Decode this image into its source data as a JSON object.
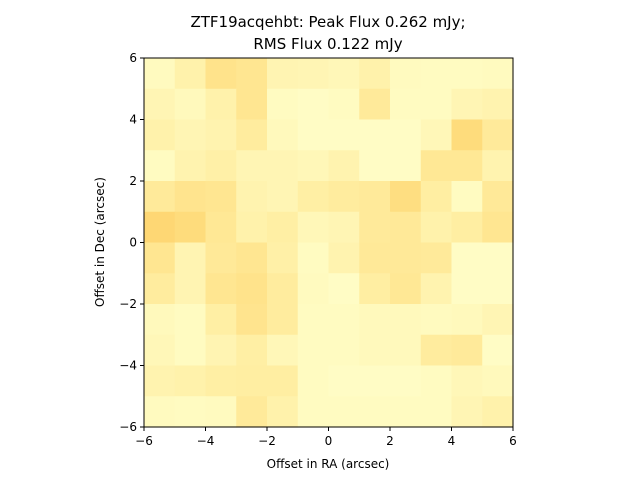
{
  "chart_data": {
    "type": "heatmap",
    "title_line1": "ZTF19acqehbt: Peak Flux 0.262 mJy;",
    "title_line2": "RMS Flux 0.122 mJy",
    "xlabel": "Offset in RA (arcsec)",
    "ylabel": "Offset in Dec (arcsec)",
    "xlim": [
      -6,
      6
    ],
    "ylim": [
      -6,
      6
    ],
    "xticks": [
      -6,
      -4,
      -2,
      0,
      2,
      4,
      6
    ],
    "yticks": [
      -6,
      -4,
      -2,
      0,
      2,
      4,
      6
    ],
    "colormap": [
      "#ffffcc",
      "#ffeda0",
      "#fed976",
      "#feb24c"
    ],
    "value_range": [
      0,
      1
    ],
    "rows_top_to_bottom": [
      [
        0.1,
        0.25,
        0.5,
        0.45,
        0.2,
        0.18,
        0.15,
        0.25,
        0.1,
        0.08,
        0.08,
        0.1
      ],
      [
        0.18,
        0.12,
        0.25,
        0.45,
        0.08,
        0.05,
        0.08,
        0.38,
        0.08,
        0.08,
        0.18,
        0.22
      ],
      [
        0.25,
        0.18,
        0.22,
        0.35,
        0.12,
        0.05,
        0.05,
        0.05,
        0.05,
        0.15,
        0.62,
        0.38
      ],
      [
        0.08,
        0.22,
        0.28,
        0.18,
        0.18,
        0.15,
        0.22,
        0.05,
        0.05,
        0.42,
        0.42,
        0.22
      ],
      [
        0.38,
        0.48,
        0.45,
        0.22,
        0.18,
        0.3,
        0.35,
        0.38,
        0.58,
        0.32,
        0.08,
        0.4
      ],
      [
        0.68,
        0.62,
        0.42,
        0.25,
        0.3,
        0.15,
        0.18,
        0.38,
        0.4,
        0.25,
        0.32,
        0.45
      ],
      [
        0.45,
        0.2,
        0.4,
        0.45,
        0.28,
        0.08,
        0.22,
        0.4,
        0.4,
        0.38,
        0.05,
        0.05
      ],
      [
        0.35,
        0.2,
        0.45,
        0.5,
        0.35,
        0.1,
        0.05,
        0.32,
        0.42,
        0.22,
        0.05,
        0.05
      ],
      [
        0.12,
        0.08,
        0.3,
        0.48,
        0.35,
        0.08,
        0.08,
        0.12,
        0.12,
        0.1,
        0.12,
        0.18
      ],
      [
        0.15,
        0.08,
        0.2,
        0.3,
        0.15,
        0.08,
        0.08,
        0.12,
        0.12,
        0.35,
        0.38,
        0.05
      ],
      [
        0.22,
        0.25,
        0.3,
        0.32,
        0.32,
        0.08,
        0.05,
        0.05,
        0.05,
        0.08,
        0.15,
        0.12
      ],
      [
        0.1,
        0.08,
        0.1,
        0.38,
        0.25,
        0.08,
        0.08,
        0.08,
        0.08,
        0.08,
        0.18,
        0.25
      ]
    ]
  }
}
